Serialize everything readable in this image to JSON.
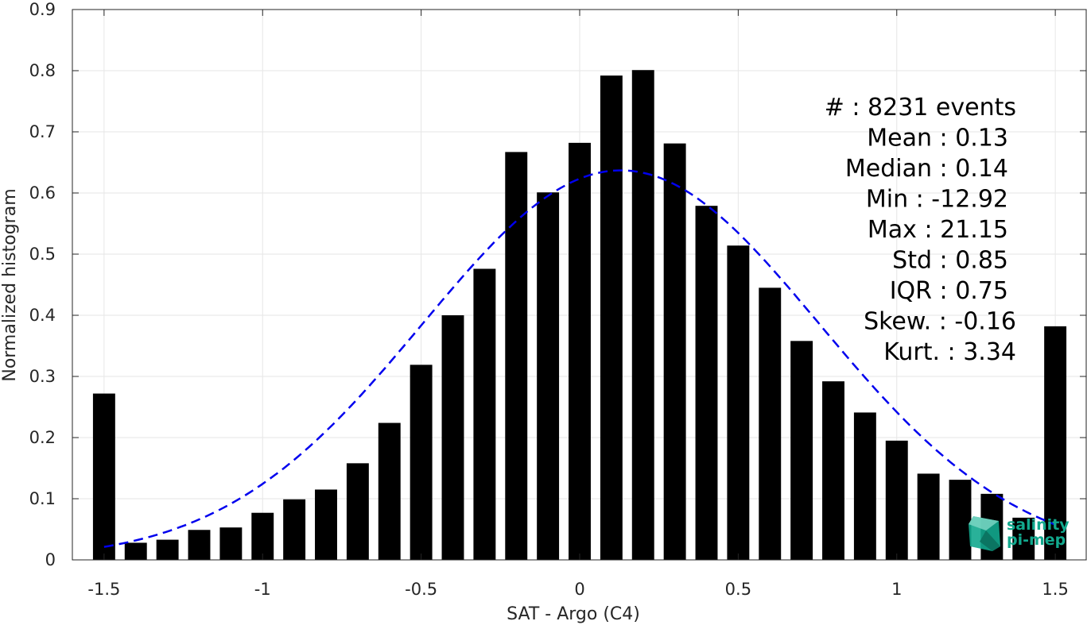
{
  "chart_data": {
    "type": "bar",
    "xlabel": "SAT - Argo (C4)",
    "ylabel": "Normalized histogram",
    "xlim": [
      -1.6,
      1.6
    ],
    "ylim": [
      0,
      0.9
    ],
    "x_ticks": [
      -1.5,
      -1,
      -0.5,
      0,
      0.5,
      1,
      1.5
    ],
    "x_tick_labels": [
      "-1.5",
      "-1",
      "-0.5",
      "0",
      "0.5",
      "1",
      "1.5"
    ],
    "y_ticks": [
      0,
      0.1,
      0.2,
      0.3,
      0.4,
      0.5,
      0.6,
      0.7,
      0.8,
      0.9
    ],
    "y_tick_labels": [
      "0",
      "0.1",
      "0.2",
      "0.3",
      "0.4",
      "0.5",
      "0.6",
      "0.7",
      "0.8",
      "0.9"
    ],
    "grid": true,
    "bar_color": "#000000",
    "bins": [
      -1.5,
      -1.4,
      -1.3,
      -1.2,
      -1.1,
      -1.0,
      -0.9,
      -0.8,
      -0.7,
      -0.6,
      -0.5,
      -0.4,
      -0.3,
      -0.2,
      -0.1,
      0.0,
      0.1,
      0.2,
      0.3,
      0.4,
      0.5,
      0.6,
      0.7,
      0.8,
      0.9,
      1.0,
      1.1,
      1.2,
      1.3,
      1.4,
      1.5
    ],
    "values": [
      0.272,
      0.028,
      0.033,
      0.049,
      0.053,
      0.077,
      0.099,
      0.115,
      0.158,
      0.224,
      0.319,
      0.4,
      0.476,
      0.667,
      0.601,
      0.682,
      0.792,
      0.801,
      0.681,
      0.579,
      0.514,
      0.445,
      0.358,
      0.292,
      0.241,
      0.195,
      0.141,
      0.131,
      0.108,
      0.069,
      0.382
    ],
    "fit": {
      "type": "gaussian",
      "mean": 0.13,
      "std": 0.625,
      "peak": 0.637,
      "x_range": [
        -1.5,
        1.5
      ],
      "color": "#0000ee"
    },
    "stats": [
      "#  : 8231 events",
      "Mean : 0.13",
      "Median : 0.14",
      "Min : -12.92",
      "Max : 21.15",
      "Std : 0.85",
      "IQR : 0.75",
      "Skew. : -0.16",
      "Kurt. : 3.34"
    ]
  },
  "logo": {
    "line1": "salinity",
    "line2": "pi-mep",
    "color": "#12a98e"
  }
}
